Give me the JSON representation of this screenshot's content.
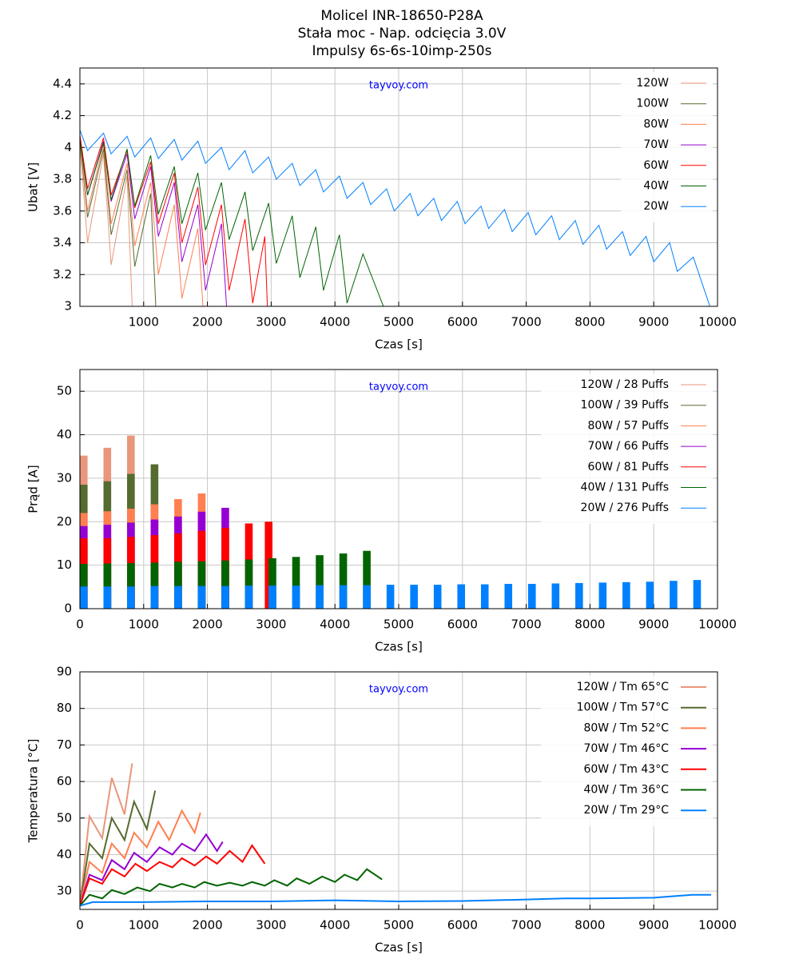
{
  "title": [
    "Molicel INR-18650-P28A",
    "Stała moc - Nap. odcięcia 3.0V",
    "Impulsy 6s-6s-10imp-250s"
  ],
  "chart_data": [
    {
      "type": "line",
      "annotation": "tayvoy.com",
      "x_label": "Czas [s]",
      "y_label": "Ubat [V]",
      "xlim": [
        0,
        10000
      ],
      "xticks": [
        1000,
        2000,
        3000,
        4000,
        5000,
        6000,
        7000,
        8000,
        9000,
        10000
      ],
      "ylim": [
        3,
        4.5
      ],
      "yticks": [
        3,
        3.2,
        3.4,
        3.6,
        3.8,
        4,
        4.2,
        4.4
      ],
      "grid": true,
      "legend": "upper right",
      "series": [
        {
          "name": "120W",
          "color": "#e9967a",
          "x": [
            0,
            120,
            370,
            490,
            740,
            820
          ],
          "values": [
            4.02,
            3.4,
            3.96,
            3.26,
            3.82,
            3.0
          ]
        },
        {
          "name": "100W",
          "color": "#556b2f",
          "x": [
            0,
            120,
            370,
            490,
            740,
            860,
            1110,
            1190
          ],
          "values": [
            4.05,
            3.56,
            3.99,
            3.45,
            3.86,
            3.25,
            3.71,
            3.0
          ]
        },
        {
          "name": "80W",
          "color": "#ff7f50",
          "x": [
            0,
            120,
            370,
            490,
            740,
            860,
            1110,
            1230,
            1480,
            1600,
            1850,
            1930
          ],
          "values": [
            4.06,
            3.6,
            4.02,
            3.52,
            3.9,
            3.38,
            3.78,
            3.2,
            3.64,
            3.05,
            3.49,
            3.0
          ]
        },
        {
          "name": "70W",
          "color": "#9400d3",
          "x": [
            0,
            120,
            370,
            490,
            740,
            860,
            1110,
            1230,
            1480,
            1600,
            1850,
            1970,
            2220,
            2300
          ],
          "values": [
            4.07,
            3.7,
            4.04,
            3.66,
            3.96,
            3.55,
            3.88,
            3.44,
            3.78,
            3.28,
            3.64,
            3.1,
            3.52,
            3.0
          ]
        },
        {
          "name": "60W",
          "color": "#ff0000",
          "x": [
            0,
            120,
            370,
            490,
            740,
            860,
            1110,
            1230,
            1480,
            1600,
            1850,
            1970,
            2220,
            2340,
            2590,
            2710,
            2900,
            2940
          ],
          "values": [
            4.08,
            3.74,
            4.06,
            3.7,
            3.98,
            3.62,
            3.91,
            3.52,
            3.84,
            3.4,
            3.75,
            3.26,
            3.64,
            3.1,
            3.55,
            3.02,
            3.44,
            3.0
          ]
        },
        {
          "name": "40W",
          "color": "#006400",
          "x": [
            0,
            120,
            370,
            490,
            740,
            860,
            1110,
            1230,
            1480,
            1600,
            1850,
            1970,
            2220,
            2340,
            2590,
            2710,
            2960,
            3080,
            3330,
            3450,
            3700,
            3820,
            4070,
            4190,
            4440,
            4760
          ],
          "values": [
            4.05,
            3.7,
            4.03,
            3.67,
            3.99,
            3.63,
            3.95,
            3.58,
            3.88,
            3.52,
            3.84,
            3.48,
            3.78,
            3.42,
            3.72,
            3.35,
            3.65,
            3.27,
            3.57,
            3.18,
            3.5,
            3.1,
            3.45,
            3.02,
            3.33,
            3.0
          ]
        },
        {
          "name": "20W",
          "color": "#0080ff",
          "x": [
            0,
            120,
            370,
            490,
            740,
            860,
            1110,
            1230,
            1480,
            1600,
            1850,
            1970,
            2220,
            2340,
            2590,
            2710,
            2960,
            3080,
            3330,
            3450,
            3700,
            3820,
            4070,
            4190,
            4440,
            4560,
            4810,
            4930,
            5180,
            5300,
            5550,
            5670,
            5920,
            6040,
            6290,
            6410,
            6660,
            6780,
            7030,
            7150,
            7400,
            7520,
            7770,
            7890,
            8140,
            8260,
            8510,
            8630,
            8880,
            9000,
            9250,
            9370,
            9620,
            9880
          ],
          "values": [
            4.11,
            3.98,
            4.09,
            3.96,
            4.07,
            3.94,
            4.06,
            3.93,
            4.05,
            3.92,
            4.04,
            3.9,
            4.0,
            3.86,
            3.98,
            3.84,
            3.94,
            3.8,
            3.9,
            3.76,
            3.86,
            3.72,
            3.82,
            3.68,
            3.78,
            3.64,
            3.74,
            3.6,
            3.71,
            3.57,
            3.68,
            3.54,
            3.66,
            3.52,
            3.63,
            3.49,
            3.61,
            3.47,
            3.59,
            3.45,
            3.57,
            3.42,
            3.54,
            3.39,
            3.51,
            3.36,
            3.47,
            3.32,
            3.44,
            3.28,
            3.4,
            3.22,
            3.31,
            3.0
          ]
        }
      ]
    },
    {
      "type": "bar",
      "annotation": "tayvoy.com",
      "x_label": "Czas [s]",
      "y_label": "Prąd [A]",
      "xlim": [
        0,
        10000
      ],
      "xticks": [
        0,
        1000,
        2000,
        3000,
        4000,
        5000,
        6000,
        7000,
        8000,
        9000,
        10000
      ],
      "ylim": [
        0,
        55
      ],
      "yticks": [
        0,
        10,
        20,
        30,
        40,
        50
      ],
      "grid": true,
      "legend": "upper right",
      "series": [
        {
          "name": "120W  /  28 Puffs",
          "color": "#e9967a",
          "x": [
            0,
            370,
            740
          ],
          "values": [
            35.2,
            37.0,
            39.8
          ]
        },
        {
          "name": "100W  /  39 Puffs",
          "color": "#556b2f",
          "x": [
            0,
            370,
            740,
            1110
          ],
          "values": [
            28.5,
            29.3,
            31.0,
            33.2
          ]
        },
        {
          "name": "80W  /  57 Puffs",
          "color": "#ff7f50",
          "x": [
            0,
            370,
            740,
            1110,
            1480,
            1850
          ],
          "values": [
            22.0,
            22.4,
            23.0,
            24.0,
            25.2,
            26.5
          ]
        },
        {
          "name": "70W  /  66 Puffs",
          "color": "#9400d3",
          "x": [
            0,
            370,
            740,
            1110,
            1480,
            1850,
            2220
          ],
          "values": [
            19.0,
            19.3,
            19.8,
            20.5,
            21.2,
            22.3,
            23.2
          ]
        },
        {
          "name": "60W  /  81 Puffs",
          "color": "#ff0000",
          "x": [
            0,
            370,
            740,
            1110,
            1480,
            1850,
            2220,
            2590,
            2900
          ],
          "values": [
            16.2,
            16.2,
            16.5,
            16.9,
            17.3,
            17.9,
            18.6,
            19.6,
            20.0
          ]
        },
        {
          "name": "40W  /  131 Puffs",
          "color": "#006400",
          "x": [
            0,
            370,
            740,
            1110,
            1480,
            1850,
            2220,
            2590,
            2960,
            3330,
            3700,
            4070,
            4440
          ],
          "values": [
            10.3,
            10.4,
            10.5,
            10.6,
            10.8,
            10.9,
            11.1,
            11.3,
            11.6,
            11.9,
            12.3,
            12.7,
            13.3
          ]
        },
        {
          "name": "20W  /  276 Puffs",
          "color": "#0080ff",
          "x": [
            0,
            370,
            740,
            1110,
            1480,
            1850,
            2220,
            2590,
            2960,
            3330,
            3700,
            4070,
            4440,
            4810,
            5180,
            5550,
            5920,
            6290,
            6660,
            7030,
            7400,
            7770,
            8140,
            8510,
            8880,
            9250,
            9620
          ],
          "values": [
            5.1,
            5.1,
            5.1,
            5.2,
            5.2,
            5.2,
            5.2,
            5.3,
            5.3,
            5.3,
            5.4,
            5.4,
            5.4,
            5.5,
            5.5,
            5.5,
            5.6,
            5.6,
            5.7,
            5.7,
            5.8,
            5.9,
            6.0,
            6.1,
            6.2,
            6.4,
            6.6
          ]
        }
      ]
    },
    {
      "type": "line",
      "annotation": "tayvoy.com",
      "x_label": "Czas [s]",
      "y_label": "Temperatura [°C]",
      "xlim": [
        0,
        10000
      ],
      "xticks": [
        0,
        1000,
        2000,
        3000,
        4000,
        5000,
        6000,
        7000,
        8000,
        9000,
        10000
      ],
      "ylim": [
        25,
        90
      ],
      "yticks": [
        30,
        40,
        50,
        60,
        70,
        80,
        90
      ],
      "grid": true,
      "legend": "upper right",
      "series": [
        {
          "name": "120W / Tm 65°C",
          "color": "#e9967a",
          "x": [
            0,
            150,
            350,
            500,
            700,
            820
          ],
          "values": [
            26,
            50.5,
            44.5,
            61,
            51,
            65
          ]
        },
        {
          "name": "100W / Tm 57°C",
          "color": "#556b2f",
          "x": [
            0,
            150,
            350,
            500,
            700,
            850,
            1050,
            1180
          ],
          "values": [
            26,
            43,
            39,
            50,
            44,
            54.5,
            47,
            57.5
          ]
        },
        {
          "name": "80W / Tm 52°C",
          "color": "#ff7f50",
          "x": [
            0,
            150,
            350,
            500,
            700,
            850,
            1050,
            1230,
            1400,
            1600,
            1800,
            1890
          ],
          "values": [
            26,
            38,
            35,
            43,
            39,
            46,
            42,
            49,
            44,
            52,
            46,
            51.5
          ]
        },
        {
          "name": "70W / Tm 46°C",
          "color": "#9400d3",
          "x": [
            0,
            150,
            350,
            500,
            700,
            850,
            1050,
            1250,
            1450,
            1600,
            1800,
            1980,
            2150,
            2240
          ],
          "values": [
            26,
            34.5,
            33,
            38.5,
            36,
            40.5,
            38,
            42,
            40,
            43,
            41,
            45.5,
            41,
            43.5
          ]
        },
        {
          "name": "60W / Tm 43°C",
          "color": "#ff0000",
          "x": [
            0,
            150,
            350,
            500,
            700,
            870,
            1050,
            1250,
            1450,
            1600,
            1800,
            1980,
            2150,
            2350,
            2550,
            2700,
            2900
          ],
          "values": [
            26,
            33.5,
            32,
            36,
            34,
            37.5,
            35.5,
            38,
            36.5,
            39,
            37,
            39.5,
            37.5,
            41,
            38,
            42.5,
            37.5
          ]
        },
        {
          "name": "40W / Tm 36°C",
          "color": "#006400",
          "x": [
            0,
            150,
            350,
            500,
            700,
            900,
            1100,
            1250,
            1450,
            1600,
            1800,
            1950,
            2150,
            2350,
            2550,
            2700,
            2900,
            3050,
            3250,
            3400,
            3600,
            3800,
            4000,
            4150,
            4350,
            4500,
            4740
          ],
          "values": [
            26,
            29,
            28,
            30.3,
            29.2,
            31,
            30,
            32,
            31,
            32,
            31,
            32.5,
            31.5,
            32.3,
            31.5,
            32.5,
            31.5,
            33,
            31.5,
            33.5,
            32,
            34,
            32.5,
            34.5,
            33,
            36,
            33.2
          ]
        },
        {
          "name": "20W / Tm 29°C",
          "color": "#0080ff",
          "x": [
            0,
            200,
            1000,
            2000,
            3000,
            4000,
            5000,
            6000,
            7000,
            7600,
            8000,
            9000,
            9600,
            9900
          ],
          "values": [
            26,
            27,
            27,
            27.2,
            27.2,
            27.5,
            27.2,
            27.3,
            27.7,
            28,
            28,
            28.2,
            29,
            29
          ]
        }
      ]
    }
  ]
}
